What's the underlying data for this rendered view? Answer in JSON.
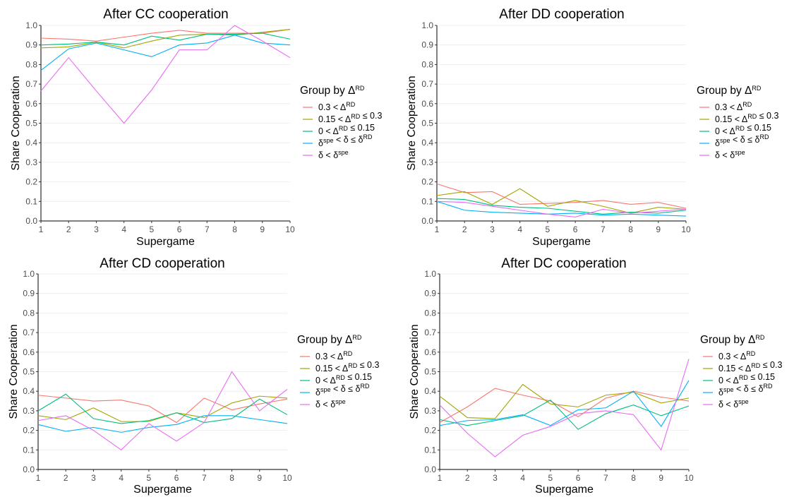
{
  "chart_data": [
    {
      "type": "line",
      "title": "After CC cooperation",
      "xlabel": "Supergame",
      "ylabel": "Share Cooperation",
      "x": [
        1,
        2,
        3,
        4,
        5,
        6,
        7,
        8,
        9,
        10
      ],
      "xlim": [
        1,
        10
      ],
      "ylim": [
        0,
        1
      ],
      "yticks": [
        0.0,
        0.1,
        0.2,
        0.3,
        0.4,
        0.5,
        0.6,
        0.7,
        0.8,
        0.9,
        1.0
      ],
      "grid": true,
      "legend_position": "right",
      "legend_title": "Group by ΔRD",
      "series": [
        {
          "name": "0.3 < ΔRD",
          "color": "#F8766D",
          "values": [
            0.935,
            0.93,
            0.92,
            0.94,
            0.96,
            0.975,
            0.96,
            0.96,
            0.96,
            0.98
          ]
        },
        {
          "name": "0.15 < ΔRD ≤ 0.3",
          "color": "#A3A500",
          "values": [
            0.885,
            0.89,
            0.915,
            0.885,
            0.92,
            0.95,
            0.955,
            0.95,
            0.965,
            0.98
          ]
        },
        {
          "name": "0 < ΔRD ≤ 0.15",
          "color": "#00BF7D",
          "values": [
            0.9,
            0.905,
            0.915,
            0.9,
            0.945,
            0.925,
            0.955,
            0.955,
            0.96,
            0.93
          ]
        },
        {
          "name": "δspe < δ ≤ δRD",
          "color": "#00B0F6",
          "values": [
            0.77,
            0.88,
            0.91,
            0.875,
            0.84,
            0.9,
            0.91,
            0.95,
            0.91,
            0.9
          ]
        },
        {
          "name": "δ < δspe",
          "color": "#E76BF3",
          "values": [
            0.665,
            0.835,
            0.665,
            0.5,
            0.67,
            0.875,
            0.875,
            1.0,
            0.92,
            0.835
          ]
        }
      ]
    },
    {
      "type": "line",
      "title": "After DD cooperation",
      "xlabel": "Supergame",
      "ylabel": "Share Cooperation",
      "x": [
        1,
        2,
        3,
        4,
        5,
        6,
        7,
        8,
        9,
        10
      ],
      "xlim": [
        1,
        10
      ],
      "ylim": [
        0,
        1
      ],
      "yticks": [
        0.0,
        0.1,
        0.2,
        0.3,
        0.4,
        0.5,
        0.6,
        0.7,
        0.8,
        0.9,
        1.0
      ],
      "grid": true,
      "legend_position": "right",
      "legend_title": "Group by ΔRD",
      "series": [
        {
          "name": "0.3 < ΔRD",
          "color": "#F8766D",
          "values": [
            0.19,
            0.145,
            0.15,
            0.085,
            0.09,
            0.095,
            0.105,
            0.085,
            0.095,
            0.065
          ]
        },
        {
          "name": "0.15 < ΔRD ≤ 0.3",
          "color": "#A3A500",
          "values": [
            0.13,
            0.15,
            0.085,
            0.165,
            0.075,
            0.105,
            0.075,
            0.04,
            0.07,
            0.06
          ]
        },
        {
          "name": "0 < ΔRD ≤ 0.15",
          "color": "#00BF7D",
          "values": [
            0.115,
            0.11,
            0.08,
            0.07,
            0.065,
            0.05,
            0.035,
            0.045,
            0.04,
            0.055
          ]
        },
        {
          "name": "δspe < δ ≤ δRD",
          "color": "#00B0F6",
          "values": [
            0.1,
            0.055,
            0.045,
            0.04,
            0.035,
            0.04,
            0.03,
            0.035,
            0.03,
            0.025
          ]
        },
        {
          "name": "δ < δspe",
          "color": "#E76BF3",
          "values": [
            0.1,
            0.095,
            0.075,
            0.055,
            0.035,
            0.02,
            0.06,
            0.04,
            0.05,
            0.06
          ]
        }
      ]
    },
    {
      "type": "line",
      "title": "After CD cooperation",
      "xlabel": "Supergame",
      "ylabel": "Share Cooperation",
      "x": [
        1,
        2,
        3,
        4,
        5,
        6,
        7,
        8,
        9,
        10
      ],
      "xlim": [
        1,
        10
      ],
      "ylim": [
        0,
        1
      ],
      "yticks": [
        0.0,
        0.1,
        0.2,
        0.3,
        0.4,
        0.5,
        0.6,
        0.7,
        0.8,
        0.9,
        1.0
      ],
      "grid": true,
      "legend_position": "right",
      "legend_title": "Group by ΔRD",
      "series": [
        {
          "name": "0.3 < ΔRD",
          "color": "#F8766D",
          "values": [
            0.38,
            0.365,
            0.35,
            0.355,
            0.325,
            0.24,
            0.365,
            0.305,
            0.335,
            0.36
          ]
        },
        {
          "name": "0.15 < ΔRD ≤ 0.3",
          "color": "#A3A500",
          "values": [
            0.275,
            0.255,
            0.315,
            0.245,
            0.245,
            0.29,
            0.265,
            0.34,
            0.375,
            0.365
          ]
        },
        {
          "name": "0 < ΔRD ≤ 0.15",
          "color": "#00BF7D",
          "values": [
            0.3,
            0.385,
            0.26,
            0.235,
            0.25,
            0.29,
            0.24,
            0.26,
            0.36,
            0.28
          ]
        },
        {
          "name": "δspe < δ ≤ δRD",
          "color": "#00B0F6",
          "values": [
            0.23,
            0.195,
            0.215,
            0.19,
            0.215,
            0.23,
            0.275,
            0.275,
            0.255,
            0.235
          ]
        },
        {
          "name": "δ < δspe",
          "color": "#E76BF3",
          "values": [
            0.25,
            0.275,
            0.2,
            0.1,
            0.235,
            0.145,
            0.24,
            0.5,
            0.3,
            0.41
          ]
        }
      ]
    },
    {
      "type": "line",
      "title": "After DC cooperation",
      "xlabel": "Supergame",
      "ylabel": "Share Cooperation",
      "x": [
        1,
        2,
        3,
        4,
        5,
        6,
        7,
        8,
        9,
        10
      ],
      "xlim": [
        1,
        10
      ],
      "ylim": [
        0,
        1
      ],
      "yticks": [
        0.0,
        0.1,
        0.2,
        0.3,
        0.4,
        0.5,
        0.6,
        0.7,
        0.8,
        0.9,
        1.0
      ],
      "grid": true,
      "legend_position": "right",
      "legend_title": "Group by ΔRD",
      "series": [
        {
          "name": "0.3 < ΔRD",
          "color": "#F8766D",
          "values": [
            0.24,
            0.32,
            0.415,
            0.38,
            0.35,
            0.27,
            0.365,
            0.4,
            0.37,
            0.35
          ]
        },
        {
          "name": "0.15 < ΔRD ≤ 0.3",
          "color": "#A3A500",
          "values": [
            0.375,
            0.265,
            0.26,
            0.435,
            0.335,
            0.32,
            0.38,
            0.395,
            0.34,
            0.365
          ]
        },
        {
          "name": "0 < ΔRD ≤ 0.15",
          "color": "#00BF7D",
          "values": [
            0.255,
            0.225,
            0.25,
            0.275,
            0.355,
            0.205,
            0.285,
            0.33,
            0.275,
            0.325
          ]
        },
        {
          "name": "δspe < δ ≤ δRD",
          "color": "#00B0F6",
          "values": [
            0.225,
            0.25,
            0.255,
            0.28,
            0.225,
            0.305,
            0.315,
            0.4,
            0.22,
            0.455
          ]
        },
        {
          "name": "δ < δspe",
          "color": "#E76BF3",
          "values": [
            0.33,
            0.185,
            0.065,
            0.175,
            0.22,
            0.285,
            0.3,
            0.28,
            0.1,
            0.565
          ]
        }
      ]
    }
  ]
}
